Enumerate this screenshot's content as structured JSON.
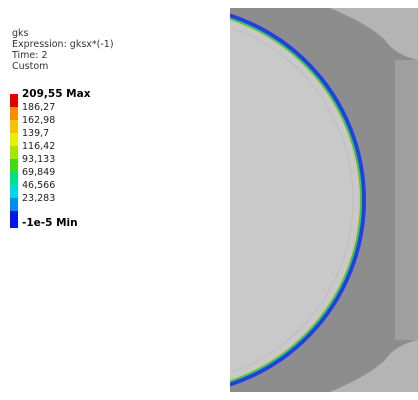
{
  "header": {
    "title": "gks",
    "expression": "Expression: gksx*(-1)",
    "time": "Time: 2",
    "custom": "Custom"
  },
  "legend": {
    "labels": [
      "209,55 Max",
      "186,27",
      "162,98",
      "139,7",
      "116,42",
      "93,133",
      "69,849",
      "46,566",
      "23,283",
      "-1e-5 Min"
    ]
  }
}
